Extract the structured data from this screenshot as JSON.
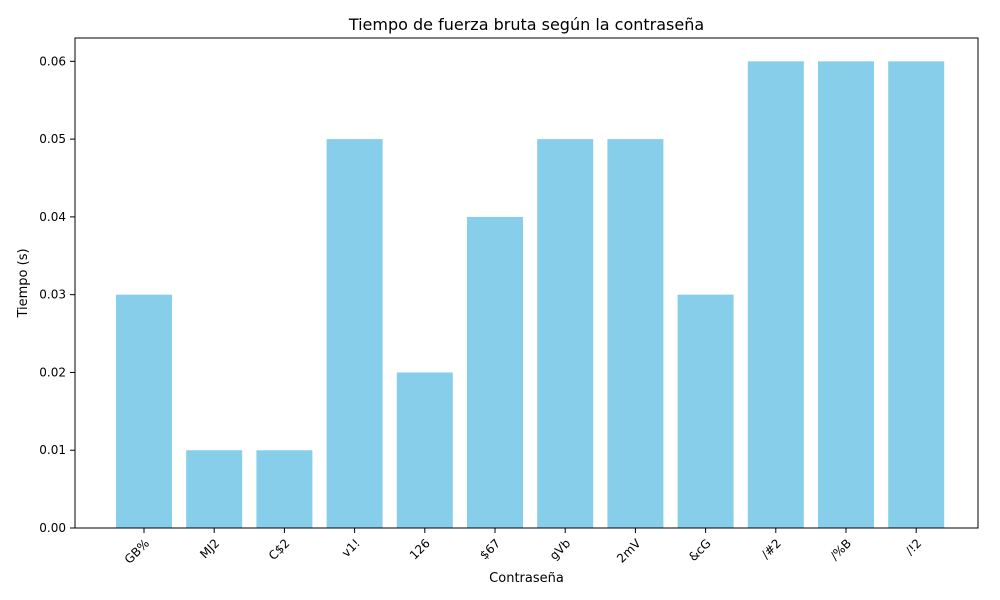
{
  "chart_data": {
    "type": "bar",
    "title": "Tiempo de fuerza bruta según la contraseña",
    "xlabel": "Contraseña",
    "ylabel": "Tiempo (s)",
    "categories": [
      "GB%",
      "MJ2",
      "C$2",
      "v1!",
      "126",
      "$67",
      "gVb",
      "2mV",
      "&cG",
      "/#2",
      "/%B",
      "/!2"
    ],
    "values": [
      0.03,
      0.01,
      0.01,
      0.05,
      0.02,
      0.04,
      0.05,
      0.05,
      0.03,
      0.06,
      0.06,
      0.06
    ],
    "ylim": [
      0,
      0.063
    ],
    "yticks": [
      "0.00",
      "0.01",
      "0.02",
      "0.03",
      "0.04",
      "0.05",
      "0.06"
    ],
    "bar_color": "#87ceeb",
    "grid": false,
    "xtick_rotation": 45
  }
}
